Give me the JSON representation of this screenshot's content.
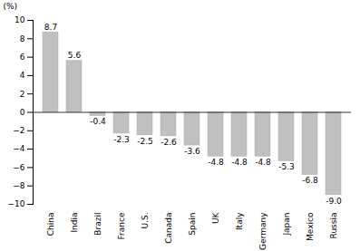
{
  "chart_data": {
    "type": "bar",
    "ylabel": "(%)",
    "categories": [
      "China",
      "India",
      "Brazil",
      "France",
      "U.S.",
      "Canada",
      "Spain",
      "UK",
      "Italy",
      "Germany",
      "Japan",
      "Mexico",
      "Russia"
    ],
    "values": [
      8.7,
      5.6,
      -0.4,
      -2.3,
      -2.5,
      -2.6,
      -3.6,
      -4.8,
      -4.8,
      -4.8,
      -5.3,
      -6.8,
      -9.0
    ],
    "value_labels": [
      "8.7",
      "5.6",
      "-0.4",
      "-2.3",
      "-2.5",
      "-2.6",
      "-3.6",
      "-4.8",
      "-4.8",
      "-4.8",
      "-5.3",
      "-6.8",
      "-9.0"
    ],
    "color": "#c0c0c0",
    "ylim": [
      -10,
      10
    ],
    "yticks": [
      -10,
      -8,
      -6,
      -4,
      -2,
      0,
      2,
      4,
      6,
      8,
      10
    ],
    "grid": false,
    "data_labels": true
  }
}
